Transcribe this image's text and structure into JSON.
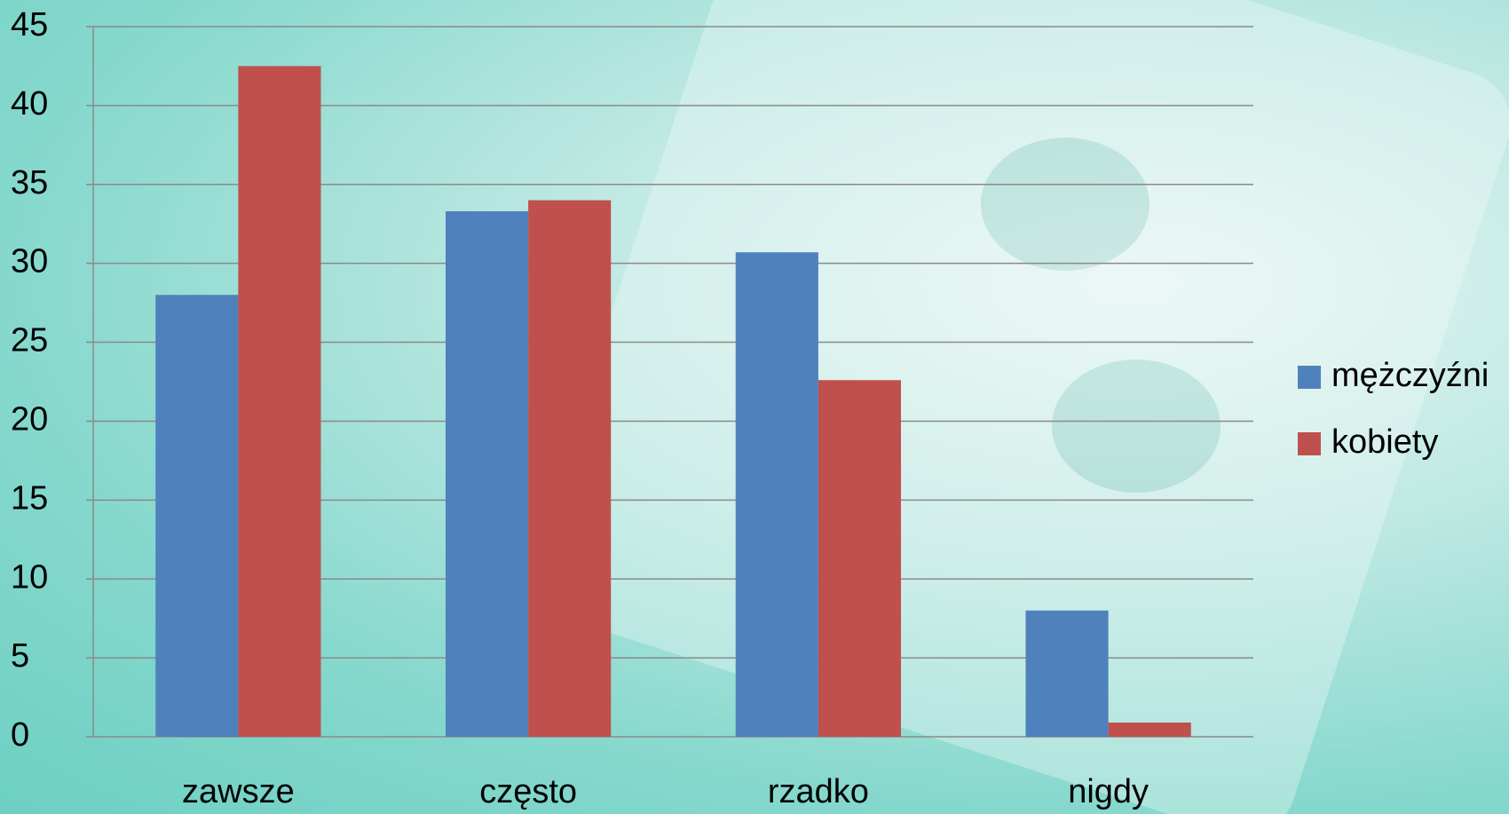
{
  "chart_data": {
    "type": "bar",
    "categories": [
      "zawsze",
      "często",
      "rzadko",
      "nigdy"
    ],
    "series": [
      {
        "name": "mężczyźni",
        "color": "#4f81bd",
        "values": [
          28,
          33.3,
          30.7,
          8
        ]
      },
      {
        "name": "kobiety",
        "color": "#c0504d",
        "values": [
          42.5,
          34,
          22.6,
          0.9
        ]
      }
    ],
    "ylim": [
      0,
      45
    ],
    "yticks": [
      0,
      5,
      10,
      15,
      20,
      25,
      30,
      35,
      40,
      45
    ],
    "grid": true,
    "legend": "right"
  }
}
